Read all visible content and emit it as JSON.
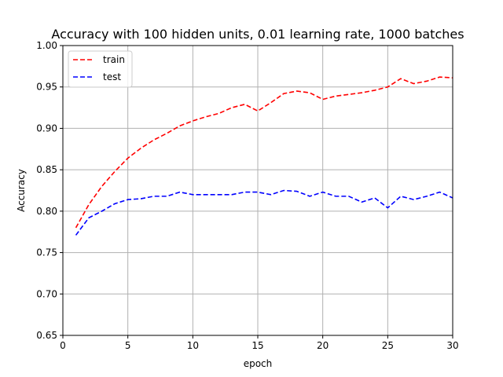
{
  "chart_data": {
    "type": "line",
    "title": "Accuracy with 100 hidden units, 0.01 learning rate, 1000 batches",
    "xlabel": "epoch",
    "ylabel": "Accuracy",
    "xlim": [
      0,
      30
    ],
    "ylim": [
      0.65,
      1.0
    ],
    "xticks": [
      0,
      5,
      10,
      15,
      20,
      25,
      30
    ],
    "xtick_labels": [
      "0",
      "5",
      "10",
      "15",
      "20",
      "25",
      "30"
    ],
    "yticks": [
      0.65,
      0.7,
      0.75,
      0.8,
      0.85,
      0.9,
      0.95,
      1.0
    ],
    "ytick_labels": [
      "0.65",
      "0.70",
      "0.75",
      "0.80",
      "0.85",
      "0.90",
      "0.95",
      "1.00"
    ],
    "grid": true,
    "legend_position": "top-left",
    "x": [
      1,
      2,
      3,
      4,
      5,
      6,
      7,
      8,
      9,
      10,
      11,
      12,
      13,
      14,
      15,
      16,
      17,
      18,
      19,
      20,
      21,
      22,
      23,
      24,
      25,
      26,
      27,
      28,
      29,
      30
    ],
    "series": [
      {
        "name": "train",
        "color": "#ff0000",
        "linestyle": "dashed",
        "values": [
          0.78,
          0.808,
          0.83,
          0.848,
          0.864,
          0.876,
          0.886,
          0.894,
          0.903,
          0.909,
          0.914,
          0.918,
          0.925,
          0.929,
          0.921,
          0.931,
          0.942,
          0.945,
          0.943,
          0.935,
          0.939,
          0.941,
          0.943,
          0.946,
          0.95,
          0.96,
          0.954,
          0.957,
          0.962,
          0.961
        ]
      },
      {
        "name": "test",
        "color": "#0000ff",
        "linestyle": "dashed",
        "values": [
          0.771,
          0.792,
          0.8,
          0.809,
          0.814,
          0.815,
          0.818,
          0.818,
          0.823,
          0.82,
          0.82,
          0.82,
          0.82,
          0.823,
          0.823,
          0.82,
          0.825,
          0.824,
          0.818,
          0.823,
          0.818,
          0.818,
          0.811,
          0.816,
          0.804,
          0.818,
          0.814,
          0.818,
          0.823,
          0.816
        ]
      }
    ]
  }
}
